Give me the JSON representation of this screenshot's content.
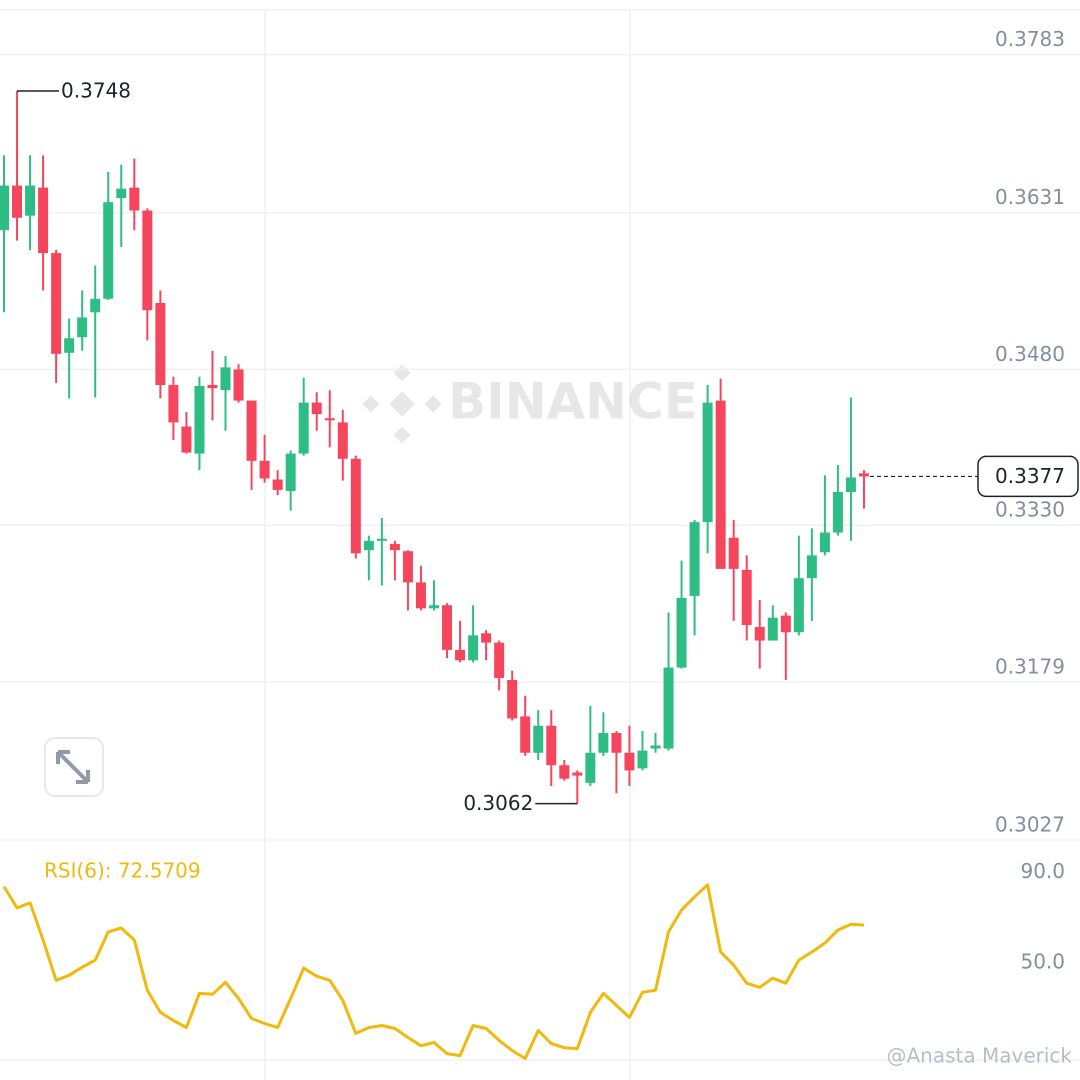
{
  "chart_data": [
    {
      "type": "candlestick",
      "watermark": "BINANCE",
      "open": [
        0.3614,
        0.3657,
        0.3628,
        0.3655,
        0.3592,
        0.3496,
        0.3511,
        0.3535,
        0.3548,
        0.3645,
        0.3655,
        0.3633,
        0.3544,
        0.3465,
        0.3425,
        0.3399,
        0.3465,
        0.346,
        0.348,
        0.345,
        0.3392,
        0.3374,
        0.3363,
        0.3399,
        0.3448,
        0.3433,
        0.3429,
        0.3394,
        0.3306,
        0.3315,
        0.3312,
        0.3305,
        0.3275,
        0.325,
        0.3253,
        0.321,
        0.32,
        0.3226,
        0.3217,
        0.3181,
        0.3146,
        0.3111,
        0.3137,
        0.3099,
        0.3092,
        0.3082,
        0.3111,
        0.313,
        0.3111,
        0.3096,
        0.3115,
        0.3115,
        0.3193,
        0.3262,
        0.3333,
        0.345,
        0.3318,
        0.3287,
        0.3232,
        0.3219,
        0.3243,
        0.3227,
        0.3279,
        0.3304,
        0.3323,
        0.3362,
        0.338
      ],
      "high": [
        0.3686,
        0.3748,
        0.3686,
        0.3686,
        0.3595,
        0.3529,
        0.3556,
        0.358,
        0.367,
        0.3677,
        0.3683,
        0.3635,
        0.3556,
        0.3473,
        0.3439,
        0.3473,
        0.3498,
        0.3493,
        0.3485,
        0.345,
        0.3417,
        0.3383,
        0.3402,
        0.3472,
        0.3458,
        0.346,
        0.3441,
        0.3397,
        0.332,
        0.3337,
        0.3315,
        0.3306,
        0.3291,
        0.3277,
        0.3255,
        0.3238,
        0.3253,
        0.3229,
        0.3219,
        0.319,
        0.3166,
        0.3152,
        0.3152,
        0.3104,
        0.3094,
        0.3156,
        0.315,
        0.3132,
        0.3137,
        0.3132,
        0.313,
        0.3246,
        0.3296,
        0.3335,
        0.3465,
        0.3471,
        0.3335,
        0.3301,
        0.3258,
        0.3253,
        0.3246,
        0.332,
        0.3327,
        0.3378,
        0.3388,
        0.3453,
        0.3383
      ],
      "low": [
        0.3535,
        0.3604,
        0.3595,
        0.3556,
        0.3467,
        0.3452,
        0.3498,
        0.3453,
        0.3547,
        0.3598,
        0.3614,
        0.3508,
        0.3452,
        0.3412,
        0.3399,
        0.3383,
        0.3431,
        0.3421,
        0.3448,
        0.3364,
        0.3371,
        0.3359,
        0.3344,
        0.3397,
        0.3421,
        0.3405,
        0.3373,
        0.3298,
        0.3277,
        0.3272,
        0.3277,
        0.3248,
        0.3248,
        0.3248,
        0.3202,
        0.3198,
        0.3198,
        0.32,
        0.3171,
        0.3142,
        0.3108,
        0.3104,
        0.3079,
        0.3084,
        0.3062,
        0.3079,
        0.3108,
        0.3072,
        0.3079,
        0.3094,
        0.3111,
        0.3113,
        0.3192,
        0.3224,
        0.3303,
        0.3288,
        0.3238,
        0.3219,
        0.3192,
        0.3219,
        0.3181,
        0.3224,
        0.3238,
        0.3301,
        0.332,
        0.3315,
        0.3346
      ],
      "close": [
        0.3657,
        0.3626,
        0.3657,
        0.3592,
        0.3495,
        0.351,
        0.353,
        0.3548,
        0.3641,
        0.3654,
        0.3633,
        0.3537,
        0.3465,
        0.3429,
        0.34,
        0.3464,
        0.3462,
        0.3482,
        0.345,
        0.3392,
        0.3375,
        0.3364,
        0.3399,
        0.3448,
        0.3437,
        0.3431,
        0.3394,
        0.3303,
        0.3315,
        0.3317,
        0.3306,
        0.3275,
        0.325,
        0.3253,
        0.321,
        0.32,
        0.3224,
        0.3217,
        0.3183,
        0.3144,
        0.3111,
        0.3137,
        0.3099,
        0.3086,
        0.3089,
        0.3111,
        0.313,
        0.3111,
        0.3094,
        0.3113,
        0.3118,
        0.3193,
        0.326,
        0.3333,
        0.3448,
        0.3288,
        0.3288,
        0.3234,
        0.3219,
        0.3241,
        0.3227,
        0.3279,
        0.3301,
        0.3323,
        0.3362,
        0.3376,
        0.3377
      ],
      "up_color": "#2ebd85",
      "down_color": "#f6465d",
      "ylim": [
        0.3027,
        0.3826
      ],
      "yticks": [
        0.3027,
        0.3179,
        {
          "value": 0.333,
          "label": "0.3330"
        },
        {
          "value": 0.348,
          "label": "0.3480"
        },
        0.3631,
        0.3783
      ],
      "grid": true
    },
    {
      "type": "line",
      "title": "RSI(6): 72.5709",
      "color": "#f0b90b",
      "values": [
        89.6,
        80.2,
        82.4,
        66.0,
        48.2,
        50.4,
        54.0,
        57.1,
        69.6,
        71.3,
        66.0,
        43.8,
        34.0,
        30.4,
        27.3,
        42.4,
        42.0,
        47.3,
        40.2,
        31.3,
        29.1,
        27.3,
        40.2,
        53.6,
        50.0,
        48.2,
        39.3,
        24.7,
        27.3,
        28.2,
        26.9,
        22.9,
        19.3,
        20.7,
        15.8,
        14.9,
        28.2,
        26.9,
        21.6,
        17.1,
        13.6,
        26.0,
        20.2,
        18.4,
        18.0,
        34.0,
        42.4,
        37.1,
        31.8,
        42.9,
        43.8,
        69.6,
        79.3,
        85.1,
        90.4,
        60.7,
        54.9,
        46.9,
        45.1,
        49.1,
        46.9,
        57.1,
        60.7,
        64.7,
        70.4,
        73.0,
        72.6
      ],
      "ylim": [
        5,
        108
      ],
      "yticks": [
        {
          "value": 50,
          "label": "50.0"
        },
        {
          "value": 90,
          "label": "90.0"
        }
      ]
    }
  ],
  "credit": "@Anasta Maverick"
}
